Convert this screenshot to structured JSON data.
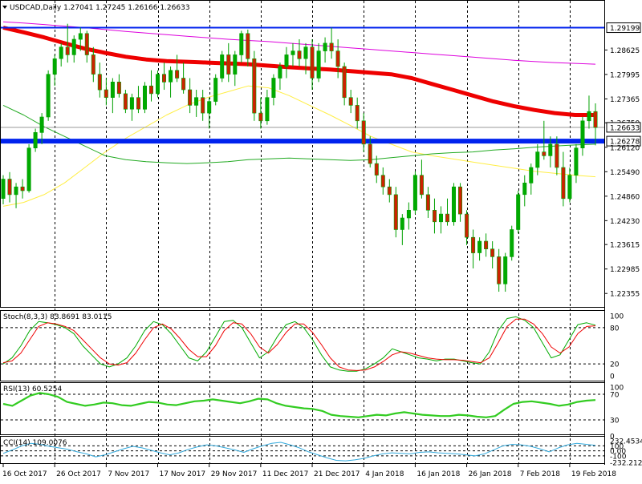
{
  "header": {
    "symbol_line": "USDCAD,Daily  1.27041 1.27245 1.26166 1.26633"
  },
  "colors": {
    "bull_body": "#00aa00",
    "bear_body": "#cc2200",
    "wick": "#00a000",
    "ma_red": "#ee0000",
    "ma_magenta": "#dd00dd",
    "ma_yellow": "#ffee44",
    "ma_green": "#22aa22",
    "blue_line": "#0022ee",
    "stoch_main": "#00aa00",
    "stoch_signal": "#ee0000",
    "rsi": "#33cc22",
    "cci": "#33aadd"
  },
  "chart_data": [
    {
      "name": "price",
      "type": "candlestick",
      "title": "USDCAD,Daily",
      "ohlc_header": [
        1.27041,
        1.27245,
        1.26166,
        1.26633
      ],
      "ylim": [
        1.2205,
        1.2985
      ],
      "y_ticks": [
        "1.29199",
        "1.28625",
        "1.27995",
        "1.27365",
        "1.26750",
        "1.26633",
        "1.26278",
        "1.26120",
        "1.25490",
        "1.24860",
        "1.24230",
        "1.23615",
        "1.22985",
        "1.22355"
      ],
      "y_tick_values": [
        1.29199,
        1.28625,
        1.27995,
        1.27365,
        1.2675,
        1.26633,
        1.26278,
        1.2612,
        1.2549,
        1.2486,
        1.2423,
        1.23615,
        1.22985,
        1.22355
      ],
      "x_ticks": [
        "16 Oct 2017",
        "26 Oct 2017",
        "7 Nov 2017",
        "17 Nov 2017",
        "29 Nov 2017",
        "11 Dec 2017",
        "21 Dec 2017",
        "4 Jan 2018",
        "16 Jan 2018",
        "26 Jan 2018",
        "7 Feb 2018",
        "19 Feb 2018"
      ],
      "x_tick_bar_index": [
        0,
        8,
        16,
        24,
        32,
        40,
        48,
        56,
        64,
        72,
        80,
        88
      ],
      "horizontal_levels": [
        {
          "price": 1.29199,
          "label": "1.29199",
          "color": "#0022ee"
        },
        {
          "price": 1.26278,
          "label": "1.26278",
          "color": "#0022ee"
        }
      ],
      "current_price": {
        "price": 1.26633,
        "label": "1.26633"
      },
      "gray_level": 1.2663,
      "candles": [
        [
          1.248,
          1.254,
          1.2465,
          1.253
        ],
        [
          1.253,
          1.2548,
          1.247,
          1.249
        ],
        [
          1.249,
          1.252,
          1.2455,
          1.251
        ],
        [
          1.251,
          1.253,
          1.248,
          1.25
        ],
        [
          1.25,
          1.262,
          1.2495,
          1.261
        ],
        [
          1.261,
          1.266,
          1.26,
          1.265
        ],
        [
          1.265,
          1.27,
          1.262,
          1.269
        ],
        [
          1.269,
          1.281,
          1.268,
          1.28
        ],
        [
          1.28,
          1.285,
          1.277,
          1.284
        ],
        [
          1.284,
          1.288,
          1.282,
          1.287
        ],
        [
          1.287,
          1.293,
          1.283,
          1.285
        ],
        [
          1.285,
          1.29,
          1.283,
          1.289
        ],
        [
          1.289,
          1.292,
          1.286,
          1.2905
        ],
        [
          1.2905,
          1.2912,
          1.283,
          1.285
        ],
        [
          1.285,
          1.287,
          1.278,
          1.28
        ],
        [
          1.28,
          1.283,
          1.274,
          1.276
        ],
        [
          1.276,
          1.279,
          1.272,
          1.274
        ],
        [
          1.274,
          1.279,
          1.27,
          1.278
        ],
        [
          1.278,
          1.28,
          1.274,
          1.275
        ],
        [
          1.275,
          1.276,
          1.27,
          1.271
        ],
        [
          1.271,
          1.275,
          1.268,
          1.274
        ],
        [
          1.274,
          1.277,
          1.27,
          1.271
        ],
        [
          1.271,
          1.278,
          1.27,
          1.277
        ],
        [
          1.277,
          1.281,
          1.273,
          1.275
        ],
        [
          1.275,
          1.281,
          1.274,
          1.28
        ],
        [
          1.28,
          1.283,
          1.276,
          1.278
        ],
        [
          1.278,
          1.282,
          1.274,
          1.281
        ],
        [
          1.281,
          1.285,
          1.278,
          1.279
        ],
        [
          1.279,
          1.283,
          1.275,
          1.276
        ],
        [
          1.276,
          1.279,
          1.27,
          1.272
        ],
        [
          1.272,
          1.276,
          1.269,
          1.274
        ],
        [
          1.274,
          1.276,
          1.268,
          1.27
        ],
        [
          1.27,
          1.274,
          1.266,
          1.273
        ],
        [
          1.273,
          1.28,
          1.272,
          1.279
        ],
        [
          1.279,
          1.286,
          1.278,
          1.285
        ],
        [
          1.285,
          1.288,
          1.278,
          1.28
        ],
        [
          1.28,
          1.286,
          1.277,
          1.285
        ],
        [
          1.285,
          1.2912,
          1.283,
          1.2905
        ],
        [
          1.2905,
          1.2915,
          1.282,
          1.284
        ],
        [
          1.284,
          1.286,
          1.268,
          1.27
        ],
        [
          1.27,
          1.274,
          1.266,
          1.268
        ],
        [
          1.268,
          1.276,
          1.267,
          1.274
        ],
        [
          1.274,
          1.28,
          1.272,
          1.279
        ],
        [
          1.279,
          1.283,
          1.276,
          1.282
        ],
        [
          1.282,
          1.287,
          1.279,
          1.285
        ],
        [
          1.285,
          1.288,
          1.282,
          1.286
        ],
        [
          1.286,
          1.289,
          1.282,
          1.284
        ],
        [
          1.284,
          1.288,
          1.28,
          1.287
        ],
        [
          1.287,
          1.289,
          1.276,
          1.279
        ],
        [
          1.279,
          1.288,
          1.278,
          1.286
        ],
        [
          1.286,
          1.2895,
          1.283,
          1.288
        ],
        [
          1.288,
          1.292,
          1.284,
          1.286
        ],
        [
          1.286,
          1.289,
          1.279,
          1.282
        ],
        [
          1.282,
          1.283,
          1.272,
          1.274
        ],
        [
          1.274,
          1.276,
          1.27,
          1.272
        ],
        [
          1.272,
          1.274,
          1.266,
          1.268
        ],
        [
          1.268,
          1.27,
          1.26,
          1.262
        ],
        [
          1.262,
          1.264,
          1.256,
          1.257
        ],
        [
          1.257,
          1.259,
          1.252,
          1.254
        ],
        [
          1.254,
          1.256,
          1.249,
          1.251
        ],
        [
          1.251,
          1.253,
          1.247,
          1.249
        ],
        [
          1.249,
          1.251,
          1.238,
          1.24
        ],
        [
          1.24,
          1.244,
          1.236,
          1.243
        ],
        [
          1.243,
          1.247,
          1.24,
          1.245
        ],
        [
          1.245,
          1.255,
          1.244,
          1.254
        ],
        [
          1.254,
          1.258,
          1.248,
          1.249
        ],
        [
          1.249,
          1.251,
          1.243,
          1.245
        ],
        [
          1.245,
          1.248,
          1.239,
          1.242
        ],
        [
          1.242,
          1.246,
          1.239,
          1.244
        ],
        [
          1.244,
          1.248,
          1.241,
          1.242
        ],
        [
          1.242,
          1.252,
          1.241,
          1.251
        ],
        [
          1.251,
          1.252,
          1.242,
          1.244
        ],
        [
          1.244,
          1.245,
          1.236,
          1.238
        ],
        [
          1.238,
          1.24,
          1.23,
          1.234
        ],
        [
          1.234,
          1.238,
          1.232,
          1.237
        ],
        [
          1.237,
          1.239,
          1.233,
          1.235
        ],
        [
          1.235,
          1.237,
          1.23,
          1.233
        ],
        [
          1.233,
          1.235,
          1.224,
          1.226
        ],
        [
          1.226,
          1.234,
          1.224,
          1.233
        ],
        [
          1.233,
          1.241,
          1.232,
          1.24
        ],
        [
          1.24,
          1.25,
          1.239,
          1.249
        ],
        [
          1.249,
          1.254,
          1.246,
          1.252
        ],
        [
          1.252,
          1.257,
          1.249,
          1.256
        ],
        [
          1.256,
          1.262,
          1.254,
          1.26
        ],
        [
          1.26,
          1.268,
          1.258,
          1.259
        ],
        [
          1.259,
          1.264,
          1.256,
          1.262
        ],
        [
          1.262,
          1.264,
          1.254,
          1.256
        ],
        [
          1.256,
          1.26,
          1.246,
          1.248
        ],
        [
          1.248,
          1.256,
          1.247,
          1.254
        ],
        [
          1.254,
          1.262,
          1.252,
          1.261
        ],
        [
          1.261,
          1.269,
          1.259,
          1.268
        ],
        [
          1.268,
          1.2745,
          1.266,
          1.2704
        ],
        [
          1.2704,
          1.2725,
          1.2617,
          1.2663
        ]
      ],
      "moving_averages": [
        {
          "color": "#ee0000",
          "width": 5,
          "values": [
            1.292,
            1.2908,
            1.2895,
            1.288,
            1.2866,
            1.2855,
            1.2845,
            1.2838,
            1.2834,
            1.2832,
            1.283,
            1.2828,
            1.2826,
            1.2822,
            1.2818,
            1.2815,
            1.2812,
            1.2808,
            1.2804,
            1.28,
            1.279,
            1.2775,
            1.276,
            1.2745,
            1.273,
            1.2718,
            1.2708,
            1.27,
            1.2695,
            1.2695
          ]
        },
        {
          "color": "#dd00dd",
          "width": 1,
          "values": [
            1.2935,
            1.2932,
            1.2928,
            1.2924,
            1.292,
            1.2915,
            1.291,
            1.2906,
            1.2902,
            1.2898,
            1.2894,
            1.289,
            1.2887,
            1.2884,
            1.288,
            1.2876,
            1.2872,
            1.2868,
            1.2864,
            1.286,
            1.2856,
            1.2852,
            1.2848,
            1.2844,
            1.284,
            1.2836,
            1.2833,
            1.283,
            1.2828,
            1.2826
          ]
        },
        {
          "color": "#ffee44",
          "width": 1,
          "values": [
            1.246,
            1.247,
            1.249,
            1.252,
            1.256,
            1.26,
            1.2635,
            1.2665,
            1.2695,
            1.272,
            1.274,
            1.2755,
            1.277,
            1.2765,
            1.2745,
            1.272,
            1.2695,
            1.2668,
            1.264,
            1.262,
            1.26,
            1.259,
            1.2582,
            1.2574,
            1.2566,
            1.2558,
            1.255,
            1.2545,
            1.254,
            1.2536
          ]
        },
        {
          "color": "#22aa22",
          "width": 1,
          "values": [
            1.272,
            1.2695,
            1.2665,
            1.264,
            1.2615,
            1.259,
            1.258,
            1.2575,
            1.2572,
            1.257,
            1.2572,
            1.2575,
            1.258,
            1.2582,
            1.2584,
            1.2582,
            1.258,
            1.2578,
            1.258,
            1.2585,
            1.259,
            1.2595,
            1.2598,
            1.26,
            1.2605,
            1.2608,
            1.2612,
            1.2615,
            1.2618,
            1.262
          ]
        }
      ]
    },
    {
      "name": "stochastic",
      "type": "line",
      "title": "Stoch(8,3,3) 83.8691 83.0115",
      "ylim": [
        -5,
        105
      ],
      "y_ticks": [
        "100",
        "80",
        "20",
        "0"
      ],
      "y_tick_values": [
        100,
        80,
        20,
        0
      ],
      "levels": [
        80,
        20
      ],
      "series": [
        {
          "name": "Stoch",
          "color": "#00aa00",
          "values": [
            20,
            30,
            50,
            75,
            90,
            88,
            85,
            80,
            70,
            50,
            35,
            20,
            15,
            20,
            30,
            50,
            75,
            90,
            85,
            70,
            50,
            30,
            25,
            40,
            65,
            90,
            92,
            80,
            55,
            30,
            40,
            65,
            85,
            90,
            80,
            60,
            35,
            15,
            10,
            8,
            8,
            12,
            20,
            30,
            45,
            40,
            35,
            30,
            28,
            25,
            28,
            28,
            25,
            22,
            20,
            40,
            75,
            95,
            98,
            92,
            80,
            55,
            30,
            35,
            60,
            85,
            88,
            84
          ]
        },
        {
          "name": "Signal",
          "color": "#ee0000",
          "values": [
            22,
            25,
            38,
            60,
            82,
            88,
            86,
            82,
            75,
            60,
            45,
            30,
            20,
            18,
            22,
            38,
            60,
            80,
            86,
            78,
            62,
            44,
            32,
            32,
            50,
            75,
            88,
            86,
            70,
            48,
            38,
            52,
            72,
            86,
            86,
            72,
            52,
            30,
            15,
            10,
            9,
            10,
            15,
            24,
            35,
            40,
            38,
            34,
            30,
            28,
            27,
            27,
            26,
            24,
            22,
            30,
            55,
            82,
            94,
            94,
            86,
            70,
            48,
            38,
            48,
            70,
            82,
            83
          ]
        }
      ]
    },
    {
      "name": "rsi",
      "type": "line",
      "title": "RSI(13) 60.5254",
      "ylim": [
        10,
        85
      ],
      "y_ticks": [
        "100",
        "70",
        "30",
        "0"
      ],
      "y_tick_values": [
        100,
        70,
        30,
        0
      ],
      "levels": [
        70,
        30
      ],
      "series": [
        {
          "name": "RSI",
          "color": "#33cc22",
          "values": [
            55,
            52,
            60,
            68,
            72,
            70,
            66,
            58,
            55,
            52,
            54,
            57,
            56,
            53,
            52,
            55,
            58,
            57,
            54,
            53,
            56,
            59,
            60,
            62,
            60,
            58,
            56,
            59,
            63,
            62,
            56,
            52,
            50,
            48,
            47,
            44,
            38,
            36,
            35,
            34,
            36,
            38,
            37,
            40,
            42,
            40,
            38,
            37,
            36,
            36,
            38,
            37,
            35,
            34,
            36,
            46,
            55,
            58,
            59,
            57,
            55,
            52,
            54,
            58,
            60,
            61
          ]
        }
      ]
    },
    {
      "name": "cci",
      "type": "line",
      "title": "CCI(14) 109.0076",
      "ylim": [
        -230,
        250
      ],
      "y_ticks": [
        "232.4534",
        "100",
        "0.00",
        "-100",
        "-232.2128"
      ],
      "y_tick_values": [
        232.4534,
        100,
        0,
        -100,
        -232.2128
      ],
      "levels": [
        100,
        0,
        -100
      ],
      "series": [
        {
          "name": "CCI",
          "color": "#33aadd",
          "values": [
            -50,
            20,
            100,
            150,
            130,
            90,
            60,
            30,
            -20,
            -60,
            -120,
            -80,
            -20,
            40,
            90,
            60,
            10,
            -40,
            -80,
            -40,
            30,
            80,
            120,
            100,
            60,
            20,
            -30,
            40,
            100,
            150,
            170,
            120,
            60,
            -20,
            -80,
            -140,
            -190,
            -200,
            -180,
            -150,
            -100,
            -60,
            -40,
            -50,
            -60,
            -30,
            -20,
            -40,
            -50,
            -60,
            -80,
            -100,
            -60,
            20,
            100,
            130,
            120,
            90,
            40,
            -20,
            60,
            120,
            150,
            130,
            109
          ]
        }
      ]
    }
  ]
}
